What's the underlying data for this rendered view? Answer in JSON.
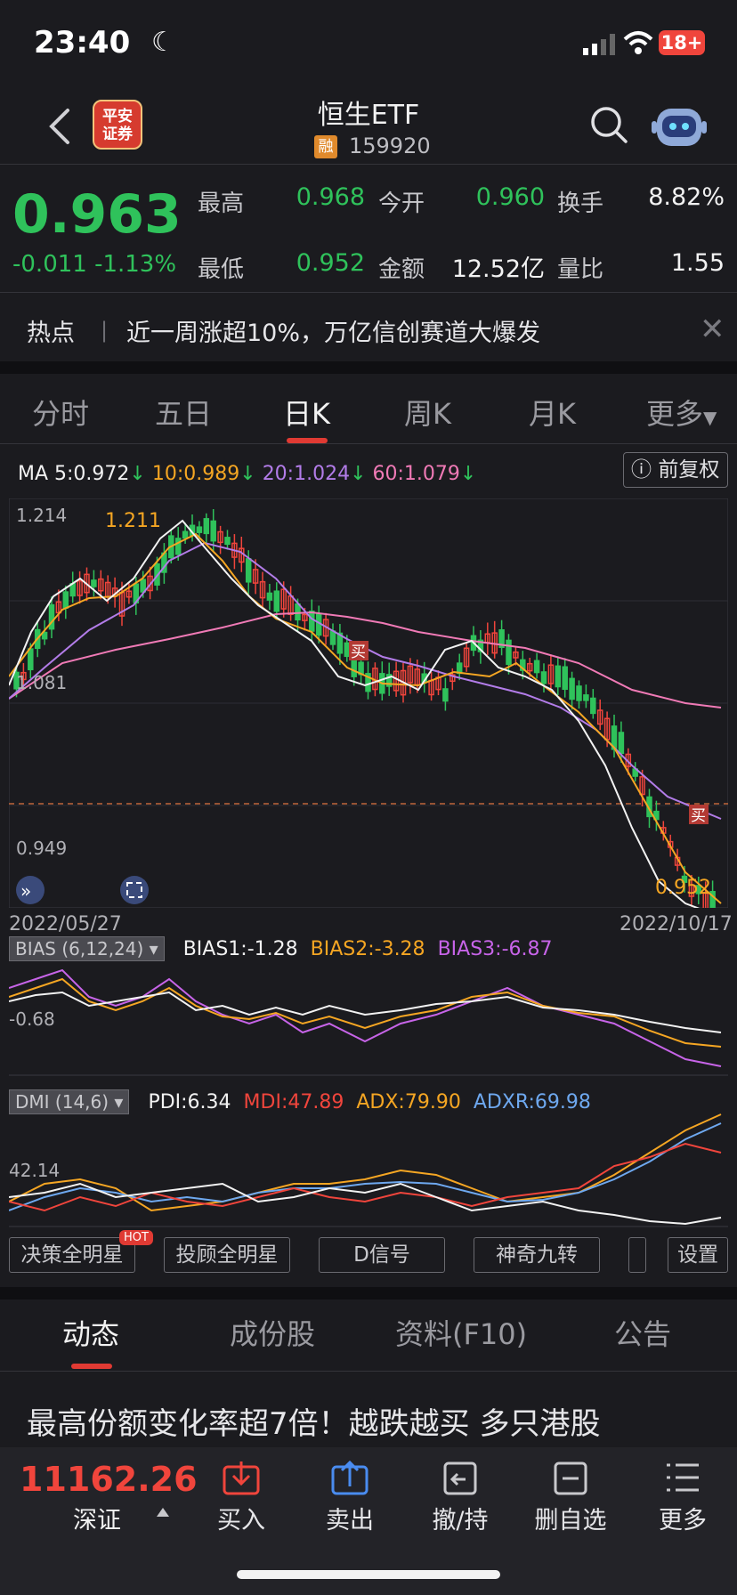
{
  "status": {
    "time": "23:40",
    "battery": "18+"
  },
  "header": {
    "title": "恒生ETF",
    "margin_tag": "融",
    "code": "159920"
  },
  "quote": {
    "price": "0.963",
    "change": "-0.011 -1.13%",
    "high_label": "最高",
    "high": "0.968",
    "open_label": "今开",
    "open": "0.960",
    "turnover_label": "换手",
    "turnover": "8.82%",
    "low_label": "最低",
    "low": "0.952",
    "amount_label": "金额",
    "amount": "12.52亿",
    "ratio_label": "量比",
    "ratio": "1.55"
  },
  "hot": {
    "label": "热点",
    "text": "近一周涨超10%，万亿信创赛道大爆发"
  },
  "chart_tabs": [
    "分时",
    "五日",
    "日K",
    "周K",
    "月K",
    "更多"
  ],
  "ma": {
    "ma5": "MA 5:0.972",
    "ma10": "10:0.989",
    "ma20": "20:1.024",
    "ma60": "60:1.079",
    "fq": "前复权"
  },
  "chart_data": {
    "type": "candlestick",
    "x_start": "2022/05/27",
    "x_end": "2022/10/17",
    "y_labels": [
      "1.214",
      "1.081",
      "0.949"
    ],
    "max_label": "1.211",
    "min_label": "0.952",
    "buy_marks": [
      "买",
      "买"
    ],
    "indicators": {
      "bias_tag": "BIAS (6,12,24)",
      "bias1": "BIAS1:-1.28",
      "bias2": "BIAS2:-3.28",
      "bias3": "BIAS3:-6.87",
      "bias_axis": "-0.68",
      "dmi_tag": "DMI (14,6)",
      "pdi": "PDI:6.34",
      "mdi": "MDI:47.89",
      "adx": "ADX:79.90",
      "adxr": "ADXR:69.98",
      "dmi_axis": "42.14"
    }
  },
  "tools": [
    "决策全明星",
    "投顾全明星",
    "D信号",
    "神奇九转",
    "设置"
  ],
  "hot_badge": "HOT",
  "news_tabs": [
    "动态",
    "成份股",
    "资料(F10)",
    "公告"
  ],
  "news_headline": "最高份额变化率超7倍！越跌越买 多只港股",
  "bottom": {
    "index_value": "11162.26",
    "index_name": "深证",
    "buy": "买入",
    "sell": "卖出",
    "cancel": "撤/持",
    "remove": "删自选",
    "more": "更多"
  },
  "colors": {
    "up": "#f0453c",
    "down": "#2fc25b",
    "ma5": "#f2f2f2",
    "ma10": "#f5a623",
    "ma20": "#b27ce8",
    "ma60": "#f07ab6"
  }
}
